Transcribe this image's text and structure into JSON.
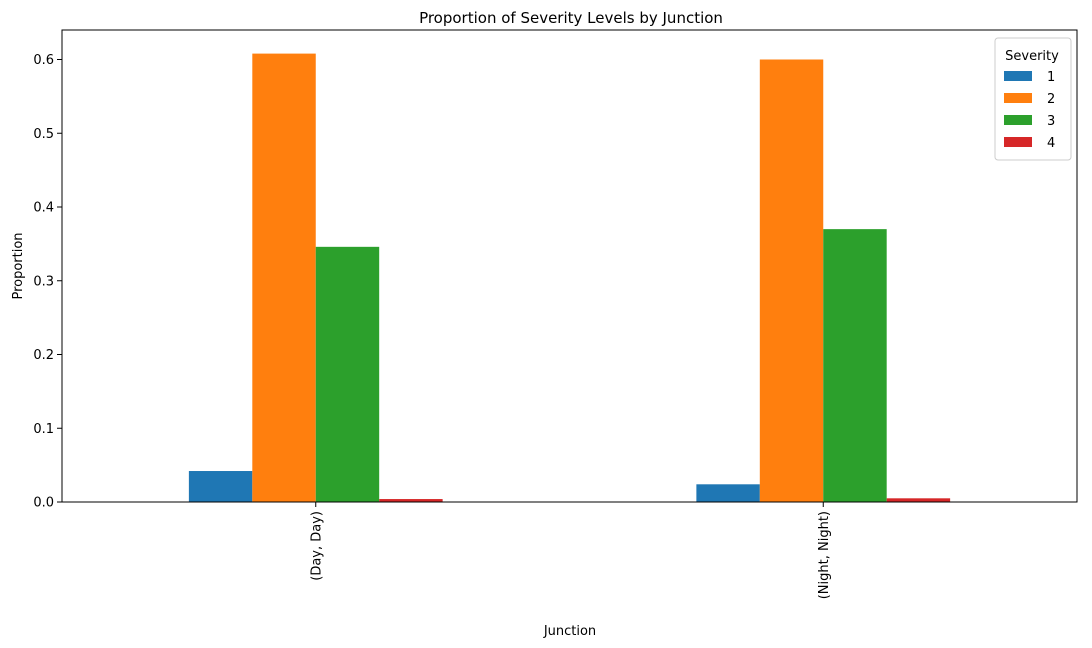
{
  "chart_data": {
    "type": "bar",
    "title": "Proportion of Severity Levels by Junction",
    "xlabel": "Junction",
    "ylabel": "Proportion",
    "categories": [
      "(Day, Day)",
      "(Night, Night)"
    ],
    "ylim": [
      0,
      0.64
    ],
    "yticks": [
      "0.0",
      "0.1",
      "0.2",
      "0.3",
      "0.4",
      "0.5",
      "0.6"
    ],
    "grid": false,
    "legend": {
      "title": "Severity",
      "placement": "top-right"
    },
    "series": [
      {
        "name": "1",
        "color": "#1f77b4",
        "values": [
          0.042,
          0.024
        ]
      },
      {
        "name": "2",
        "color": "#ff7f0e",
        "values": [
          0.608,
          0.6
        ]
      },
      {
        "name": "3",
        "color": "#2ca02c",
        "values": [
          0.346,
          0.37
        ]
      },
      {
        "name": "4",
        "color": "#d62728",
        "values": [
          0.004,
          0.005
        ]
      }
    ]
  }
}
